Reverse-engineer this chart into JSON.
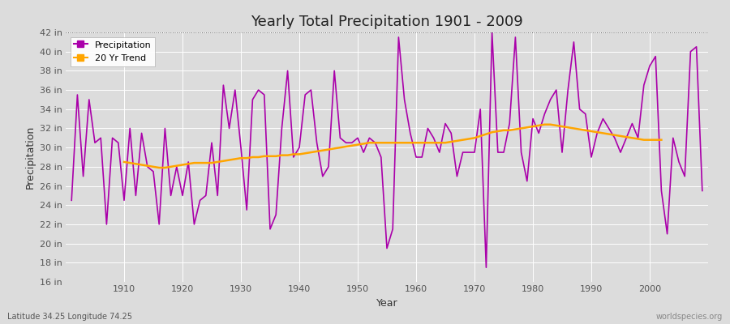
{
  "title": "Yearly Total Precipitation 1901 - 2009",
  "xlabel": "Year",
  "ylabel": "Precipitation",
  "background_color": "#dcdcdc",
  "plot_bg_color": "#dcdcdc",
  "precip_color": "#aa00aa",
  "trend_color": "#ffa500",
  "years": [
    1901,
    1902,
    1903,
    1904,
    1905,
    1906,
    1907,
    1908,
    1909,
    1910,
    1911,
    1912,
    1913,
    1914,
    1915,
    1916,
    1917,
    1918,
    1919,
    1920,
    1921,
    1922,
    1923,
    1924,
    1925,
    1926,
    1927,
    1928,
    1929,
    1930,
    1931,
    1932,
    1933,
    1934,
    1935,
    1936,
    1937,
    1938,
    1939,
    1940,
    1941,
    1942,
    1943,
    1944,
    1945,
    1946,
    1947,
    1948,
    1949,
    1950,
    1951,
    1952,
    1953,
    1954,
    1955,
    1956,
    1957,
    1958,
    1959,
    1960,
    1961,
    1962,
    1963,
    1964,
    1965,
    1966,
    1967,
    1968,
    1969,
    1970,
    1971,
    1972,
    1973,
    1974,
    1975,
    1976,
    1977,
    1978,
    1979,
    1980,
    1981,
    1982,
    1983,
    1984,
    1985,
    1986,
    1987,
    1988,
    1989,
    1990,
    1991,
    1992,
    1993,
    1994,
    1995,
    1996,
    1997,
    1998,
    1999,
    2000,
    2001,
    2002,
    2003,
    2004,
    2005,
    2006,
    2007,
    2008,
    2009
  ],
  "precipitation": [
    24.5,
    35.5,
    27.0,
    35.0,
    30.5,
    31.0,
    22.0,
    31.0,
    30.5,
    24.5,
    32.0,
    25.0,
    31.5,
    28.0,
    27.5,
    22.0,
    32.0,
    25.0,
    28.0,
    25.0,
    28.5,
    22.0,
    24.5,
    25.0,
    30.5,
    25.0,
    36.5,
    32.0,
    36.0,
    30.0,
    23.5,
    35.0,
    36.0,
    35.5,
    21.5,
    23.0,
    32.0,
    38.0,
    29.0,
    30.0,
    35.5,
    36.0,
    30.5,
    27.0,
    28.0,
    38.0,
    31.0,
    30.5,
    30.5,
    31.0,
    29.5,
    31.0,
    30.5,
    29.0,
    19.5,
    21.5,
    41.5,
    35.0,
    31.5,
    29.0,
    29.0,
    32.0,
    31.0,
    29.5,
    32.5,
    31.5,
    27.0,
    29.5,
    29.5,
    29.5,
    34.0,
    17.5,
    42.0,
    29.5,
    29.5,
    32.5,
    41.5,
    29.5,
    26.5,
    33.0,
    31.5,
    33.5,
    35.0,
    36.0,
    29.5,
    36.0,
    41.0,
    34.0,
    33.5,
    29.0,
    31.5,
    33.0,
    32.0,
    31.0,
    29.5,
    31.0,
    32.5,
    31.0,
    36.5,
    38.5,
    39.5,
    25.5,
    21.0,
    31.0,
    28.5,
    27.0,
    40.0,
    40.5,
    25.5
  ],
  "trend": [
    null,
    null,
    null,
    null,
    null,
    null,
    null,
    null,
    null,
    28.5,
    28.4,
    28.3,
    28.2,
    28.1,
    28.0,
    27.9,
    27.9,
    28.0,
    28.1,
    28.2,
    28.3,
    28.4,
    28.4,
    28.4,
    28.4,
    28.5,
    28.6,
    28.7,
    28.8,
    28.9,
    28.9,
    29.0,
    29.0,
    29.1,
    29.1,
    29.1,
    29.2,
    29.2,
    29.3,
    29.3,
    29.4,
    29.5,
    29.6,
    29.7,
    29.8,
    29.9,
    30.0,
    30.1,
    30.2,
    30.3,
    30.4,
    30.5,
    30.5,
    30.5,
    30.5,
    30.5,
    30.5,
    30.5,
    30.5,
    30.5,
    30.5,
    30.5,
    30.5,
    30.5,
    30.5,
    30.6,
    30.7,
    30.8,
    30.9,
    31.0,
    31.2,
    31.4,
    31.6,
    31.7,
    31.8,
    31.8,
    31.9,
    32.0,
    32.1,
    32.2,
    32.3,
    32.4,
    32.4,
    32.3,
    32.2,
    32.1,
    32.0,
    31.9,
    31.8,
    31.7,
    31.6,
    31.5,
    31.4,
    31.3,
    31.2,
    31.1,
    31.0,
    30.9,
    30.8,
    30.8,
    30.8,
    30.8,
    null,
    null,
    null,
    null,
    null,
    null,
    null,
    null,
    null,
    null
  ],
  "ylim": [
    16,
    42
  ],
  "yticks": [
    16,
    18,
    20,
    22,
    24,
    26,
    28,
    30,
    32,
    34,
    36,
    38,
    40,
    42
  ],
  "ytick_labels": [
    "16 in",
    "18 in",
    "20 in",
    "22 in",
    "24 in",
    "26 in",
    "28 in",
    "30 in",
    "32 in",
    "34 in",
    "36 in",
    "38 in",
    "40 in",
    "42 in"
  ],
  "xlim": [
    1900,
    2010
  ],
  "xticks": [
    1910,
    1920,
    1930,
    1940,
    1950,
    1960,
    1970,
    1980,
    1990,
    2000
  ],
  "hline_y": 42,
  "footnote_left": "Latitude 34.25 Longitude 74.25",
  "footnote_right": "worldspecies.org",
  "legend_labels": [
    "Precipitation",
    "20 Yr Trend"
  ],
  "title_fontsize": 13,
  "axis_label_fontsize": 9,
  "tick_fontsize": 8
}
